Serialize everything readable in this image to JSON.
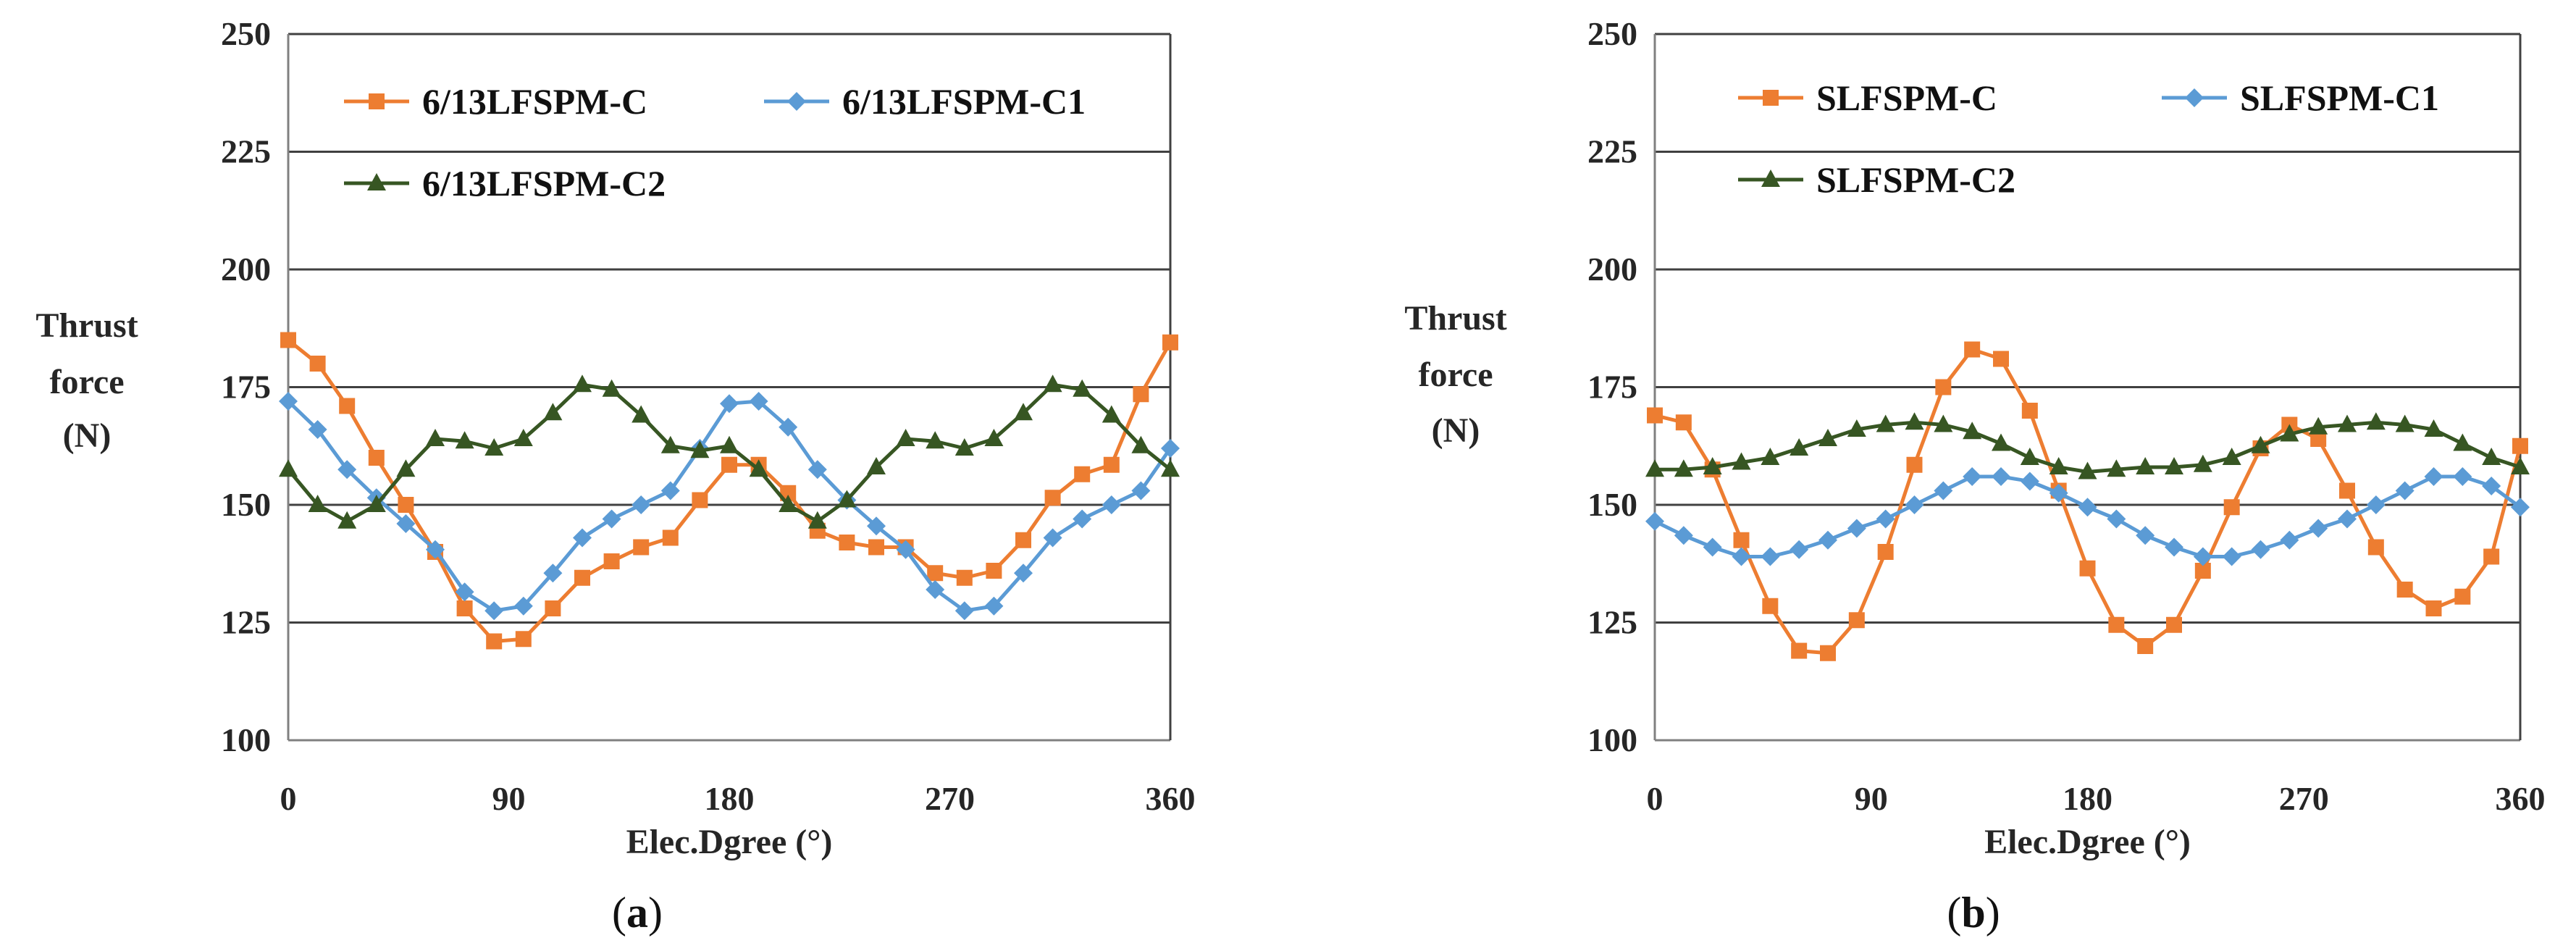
{
  "colors": {
    "s1": "#ED7D31",
    "s2": "#5B9BD5",
    "s3": "#375623",
    "grid": "#404040",
    "axis": "#808080"
  },
  "chart_data": [
    {
      "type": "line",
      "panel": "a",
      "caption": {
        "open": "(",
        "letter": "a",
        "close": ")"
      },
      "xlabel": "Elec.Dgree (°)",
      "ylabel": [
        "Thrust",
        "force",
        "(N)"
      ],
      "xlim": [
        0,
        360
      ],
      "ylim": [
        100,
        250
      ],
      "xticks": [
        "0",
        "90",
        "180",
        "270",
        "360"
      ],
      "yticks": [
        "100",
        "125",
        "150",
        "175",
        "200",
        "225",
        "250"
      ],
      "grid": true,
      "legend_placement": "top",
      "x": [
        0,
        12,
        24,
        36,
        48,
        60,
        72,
        84,
        96,
        108,
        120,
        132,
        144,
        156,
        168,
        180,
        192,
        204,
        216,
        228,
        240,
        252,
        264,
        276,
        288,
        300,
        312,
        324,
        336,
        348,
        360
      ],
      "series": [
        {
          "name": "6/13LFSPM-C",
          "marker": "square",
          "color": "#ED7D31",
          "values": [
            185,
            180,
            171,
            160,
            150,
            140,
            128,
            121,
            121.5,
            128,
            134.5,
            138,
            141,
            143,
            151,
            158.5,
            158.5,
            152.5,
            144.5,
            142,
            141,
            141,
            135.5,
            134.5,
            136,
            142.5,
            151.5,
            156.5,
            158.5,
            173.5,
            184.5
          ]
        },
        {
          "name": "6/13LFSPM-C1",
          "marker": "diamond",
          "color": "#5B9BD5",
          "values": [
            172,
            166,
            157.5,
            151.5,
            146,
            140.5,
            131.5,
            127.5,
            128.5,
            135.5,
            143,
            147,
            150,
            153,
            162,
            171.5,
            172,
            166.5,
            157.5,
            151,
            145.5,
            140.5,
            132,
            127.5,
            128.5,
            135.5,
            143,
            147,
            150,
            153,
            162
          ]
        },
        {
          "name": "6/13LFSPM-C2",
          "marker": "triangle",
          "color": "#375623",
          "values": [
            157.5,
            150,
            146.5,
            150,
            157.5,
            164,
            163.5,
            162,
            164,
            169.5,
            175.5,
            174.5,
            169,
            162.5,
            161.5,
            162.5,
            157.5,
            150,
            146.5,
            151,
            158,
            164,
            163.5,
            162,
            164,
            169.5,
            175.5,
            174.5,
            169,
            162.5,
            157.5
          ]
        }
      ]
    },
    {
      "type": "line",
      "panel": "b",
      "caption": {
        "open": "(",
        "letter": "b",
        "close": ")"
      },
      "xlabel": "Elec.Dgree (°)",
      "ylabel": [
        "Thrust",
        "force",
        "(N)"
      ],
      "xlim": [
        0,
        360
      ],
      "ylim": [
        100,
        250
      ],
      "xticks": [
        "0",
        "90",
        "180",
        "270",
        "360"
      ],
      "yticks": [
        "100",
        "125",
        "150",
        "175",
        "200",
        "225",
        "250"
      ],
      "grid": true,
      "legend_placement": "top",
      "x": [
        0,
        12,
        24,
        36,
        48,
        60,
        72,
        84,
        96,
        108,
        120,
        132,
        144,
        156,
        168,
        180,
        192,
        204,
        216,
        228,
        240,
        252,
        264,
        276,
        288,
        300,
        312,
        324,
        336,
        348,
        360
      ],
      "series": [
        {
          "name": "SLFSPM-C",
          "marker": "square",
          "color": "#ED7D31",
          "values": [
            169,
            167.5,
            157.5,
            142.5,
            128.5,
            119,
            118.5,
            125.5,
            140,
            158.5,
            175,
            183,
            181,
            170,
            153,
            136.5,
            124.5,
            120,
            124.5,
            136,
            149.5,
            162,
            167,
            164,
            153,
            141,
            132,
            128,
            130.5,
            139,
            162.5
          ]
        },
        {
          "name": "SLFSPM-C1",
          "marker": "diamond",
          "color": "#5B9BD5",
          "values": [
            146.5,
            143.5,
            141,
            139,
            139,
            140.5,
            142.5,
            145,
            147,
            150,
            153,
            156,
            156,
            155,
            152.5,
            149.5,
            147,
            143.5,
            141,
            139,
            139,
            140.5,
            142.5,
            145,
            147,
            150,
            153,
            156,
            156,
            154,
            149.5
          ]
        },
        {
          "name": "SLFSPM-C2",
          "marker": "triangle",
          "color": "#375623",
          "values": [
            157.5,
            157.5,
            158,
            159,
            160,
            162,
            164,
            166,
            167,
            167.5,
            167,
            165.5,
            163,
            160,
            158,
            157,
            157.5,
            158,
            158,
            158.5,
            160,
            162.5,
            165,
            166.5,
            167,
            167.5,
            167,
            166,
            163,
            160,
            158
          ]
        }
      ]
    }
  ]
}
